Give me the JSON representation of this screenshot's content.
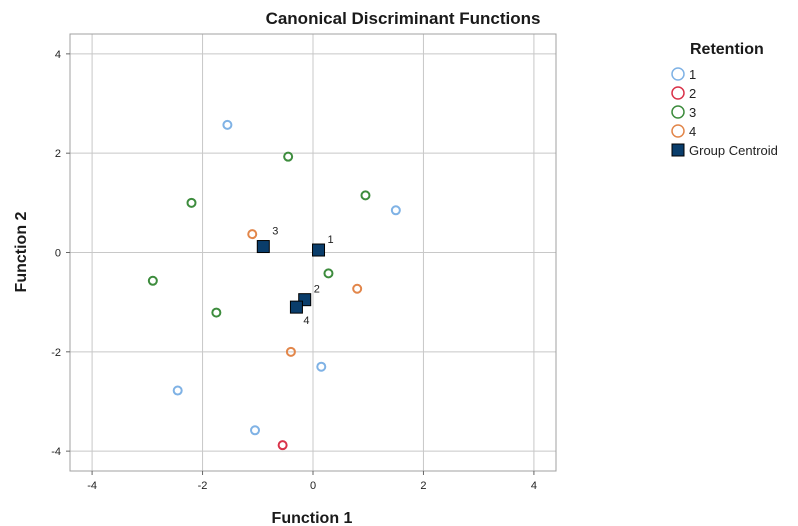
{
  "chart_data": {
    "type": "scatter",
    "title": "Canonical Discriminant Functions",
    "xlabel": "Function 1",
    "ylabel": "Function 2",
    "xlim": [
      -4.4,
      4.4
    ],
    "ylim": [
      -4.4,
      4.4
    ],
    "xticks": [
      -4,
      -2,
      0,
      2,
      4
    ],
    "yticks": [
      -4,
      -2,
      0,
      2,
      4
    ],
    "grid": true,
    "legend": {
      "title": "Retention",
      "position": "right",
      "entries": [
        "1",
        "2",
        "3",
        "4",
        "Group Centroid"
      ]
    },
    "series": [
      {
        "name": "1",
        "color": "#7fb2e5",
        "marker": "open-circle",
        "points": [
          [
            -1.55,
            2.57
          ],
          [
            1.5,
            0.85
          ],
          [
            0.15,
            -2.3
          ],
          [
            -2.45,
            -2.78
          ],
          [
            -1.05,
            -3.58
          ]
        ]
      },
      {
        "name": "2",
        "color": "#d9334a",
        "marker": "open-circle",
        "points": [
          [
            -0.55,
            -3.88
          ]
        ]
      },
      {
        "name": "3",
        "color": "#3d8c3d",
        "marker": "open-circle",
        "points": [
          [
            -0.45,
            1.93
          ],
          [
            0.95,
            1.15
          ],
          [
            -2.2,
            1.0
          ],
          [
            0.28,
            -0.42
          ],
          [
            -2.9,
            -0.57
          ],
          [
            -1.75,
            -1.21
          ]
        ]
      },
      {
        "name": "4",
        "color": "#e2864a",
        "marker": "open-circle",
        "points": [
          [
            -1.1,
            0.37
          ],
          [
            0.8,
            -0.73
          ],
          [
            -0.4,
            -2.0
          ]
        ]
      },
      {
        "name": "Group Centroid",
        "color": "#0a3d6b",
        "marker": "filled-square",
        "points": [
          [
            0.1,
            0.05,
            "1"
          ],
          [
            -0.15,
            -0.95,
            "2"
          ],
          [
            -0.9,
            0.12,
            "3"
          ],
          [
            -0.3,
            -1.1,
            "4"
          ]
        ]
      }
    ]
  }
}
